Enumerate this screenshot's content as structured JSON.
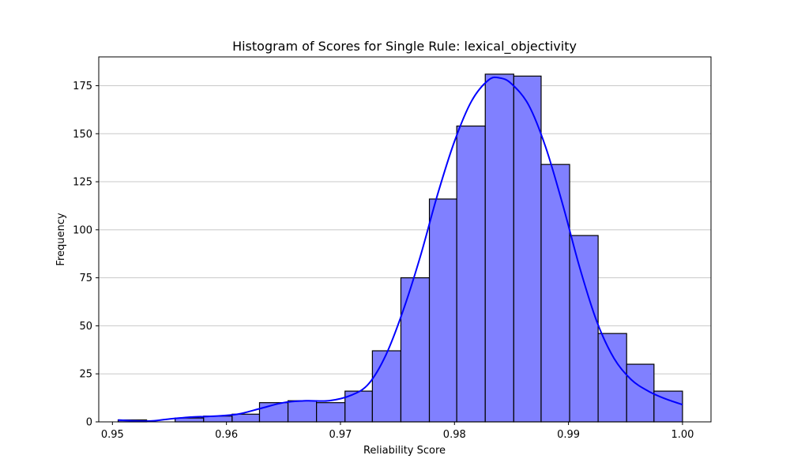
{
  "chart_data": {
    "type": "bar",
    "title": "Histogram of Scores for Single Rule: lexical_objectivity",
    "xlabel": "Reliability Score",
    "ylabel": "Frequency",
    "xlim": [
      0.9488,
      1.0025
    ],
    "ylim": [
      0,
      190
    ],
    "grid": "y",
    "bar_color": "#8080ff",
    "bar_edge_color": "#000000",
    "kde_color": "#0000ff",
    "xticks": [
      0.95,
      0.96,
      0.97,
      0.98,
      0.99,
      1.0
    ],
    "xtick_labels": [
      "0.95",
      "0.96",
      "0.97",
      "0.98",
      "0.99",
      "1.00"
    ],
    "yticks": [
      0,
      25,
      50,
      75,
      100,
      125,
      150,
      175
    ],
    "ytick_labels": [
      "0",
      "25",
      "50",
      "75",
      "100",
      "125",
      "150",
      "175"
    ],
    "bins": [
      {
        "x0": 0.9505,
        "x1": 0.953,
        "count": 1
      },
      {
        "x0": 0.953,
        "x1": 0.9555,
        "count": 0
      },
      {
        "x0": 0.9555,
        "x1": 0.958,
        "count": 2
      },
      {
        "x0": 0.958,
        "x1": 0.9605,
        "count": 3
      },
      {
        "x0": 0.9605,
        "x1": 0.9629,
        "count": 4
      },
      {
        "x0": 0.9629,
        "x1": 0.9654,
        "count": 10
      },
      {
        "x0": 0.9654,
        "x1": 0.9679,
        "count": 11
      },
      {
        "x0": 0.9679,
        "x1": 0.9704,
        "count": 10
      },
      {
        "x0": 0.9704,
        "x1": 0.9728,
        "count": 16
      },
      {
        "x0": 0.9728,
        "x1": 0.9753,
        "count": 37
      },
      {
        "x0": 0.9753,
        "x1": 0.9778,
        "count": 75
      },
      {
        "x0": 0.9778,
        "x1": 0.9802,
        "count": 116
      },
      {
        "x0": 0.9802,
        "x1": 0.9827,
        "count": 154
      },
      {
        "x0": 0.9827,
        "x1": 0.9852,
        "count": 181
      },
      {
        "x0": 0.9852,
        "x1": 0.9876,
        "count": 180
      },
      {
        "x0": 0.9876,
        "x1": 0.9901,
        "count": 134
      },
      {
        "x0": 0.9901,
        "x1": 0.9926,
        "count": 97
      },
      {
        "x0": 0.9926,
        "x1": 0.9951,
        "count": 46
      },
      {
        "x0": 0.9951,
        "x1": 0.9975,
        "count": 30
      },
      {
        "x0": 0.9975,
        "x1": 1.0,
        "count": 16
      }
    ],
    "kde": {
      "x": [
        0.9505,
        0.952,
        0.9535,
        0.955,
        0.957,
        0.959,
        0.961,
        0.963,
        0.965,
        0.967,
        0.969,
        0.971,
        0.9725,
        0.974,
        0.9755,
        0.977,
        0.9785,
        0.98,
        0.9815,
        0.983,
        0.984,
        0.985,
        0.9865,
        0.988,
        0.9895,
        0.991,
        0.9925,
        0.994,
        0.9955,
        0.997,
        0.9985,
        1.0
      ],
      "y": [
        1,
        0.5,
        0.5,
        1.5,
        2.5,
        3,
        4,
        7,
        10,
        11,
        11,
        14,
        20,
        35,
        58,
        86,
        118,
        146,
        167,
        178,
        179,
        176,
        165,
        143,
        113,
        80,
        52,
        33,
        22,
        16,
        12,
        9
      ]
    }
  }
}
